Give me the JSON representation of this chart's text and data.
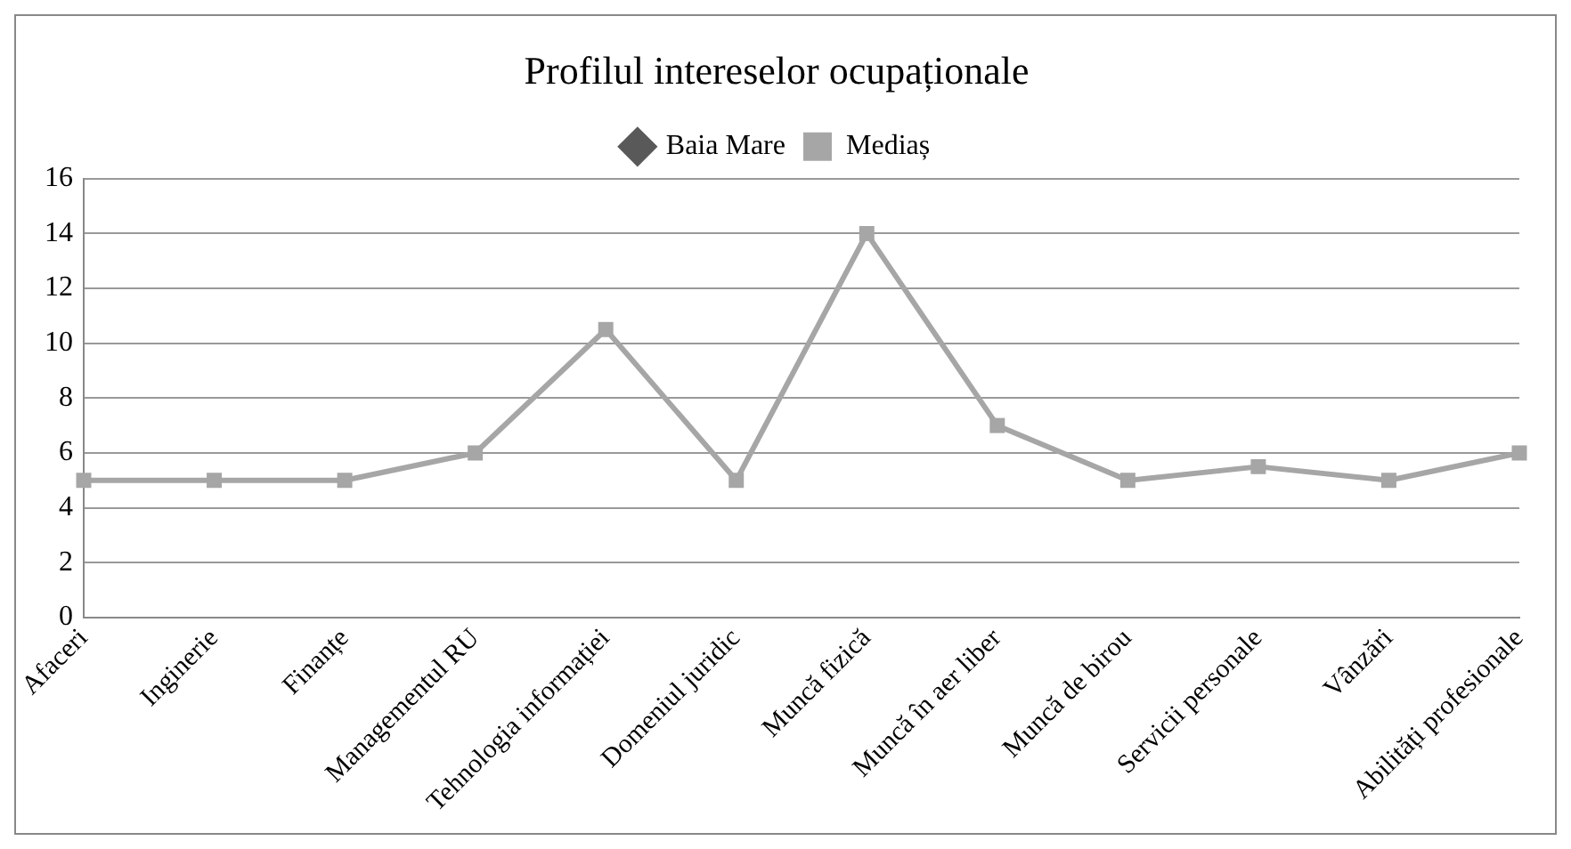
{
  "chart_data": {
    "type": "line",
    "title": "Profilul intereselor ocupaționale",
    "categories": [
      "Afaceri",
      "Inginerie",
      "Finanțe",
      "Managementul RU",
      "Tehnologia informației",
      "Domeniul juridic",
      "Muncă fizică",
      "Muncă în aer liber",
      "Muncă de birou",
      "Servicii personale",
      "Vânzări",
      "Abilități profesionale"
    ],
    "series": [
      {
        "name": "Baia Mare",
        "color": "#595959",
        "marker": "diamond",
        "values": [
          null,
          null,
          null,
          null,
          null,
          null,
          null,
          null,
          null,
          null,
          null,
          null
        ]
      },
      {
        "name": "Mediaș",
        "color": "#a6a6a6",
        "marker": "square",
        "values": [
          5,
          5,
          5,
          6,
          10.5,
          5,
          14,
          7,
          5,
          5.5,
          5,
          6
        ]
      }
    ],
    "ylim": [
      0,
      16
    ],
    "yticks": [
      0,
      2,
      4,
      6,
      8,
      10,
      12,
      14,
      16
    ],
    "grid": "y",
    "legend": "top"
  }
}
